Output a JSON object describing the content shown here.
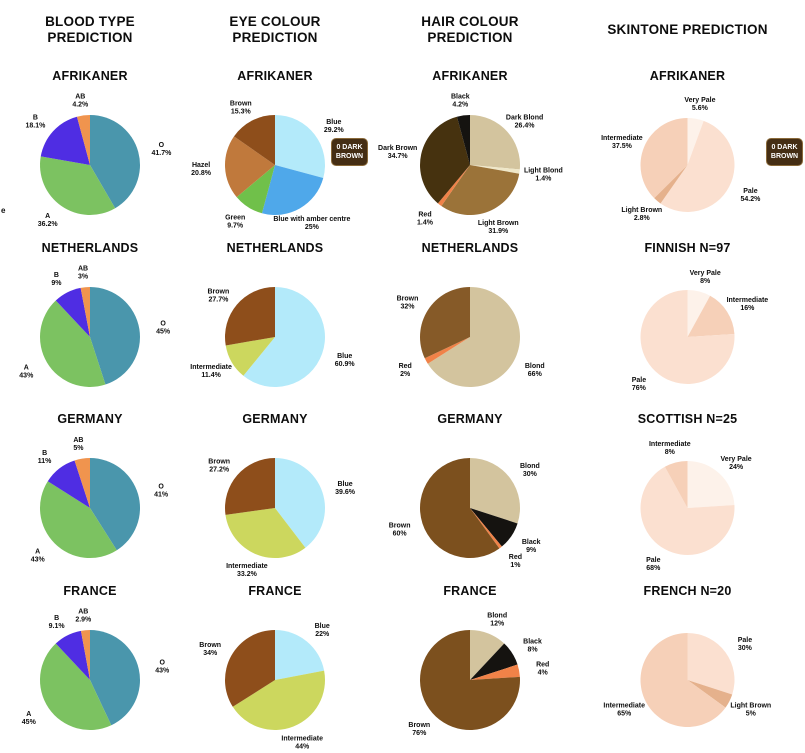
{
  "page": {
    "background": "#ffffff",
    "stray_text": "e"
  },
  "columns": [
    {
      "header": "BLOOD TYPE PREDICTION"
    },
    {
      "header": "EYE COLOUR PREDICTION"
    },
    {
      "header": "HAIR COLOUR PREDICTION"
    },
    {
      "header": "SKINTONE PREDICTION"
    }
  ],
  "badges": [
    {
      "label": "0 DARK BROWN"
    },
    {
      "label": "0 DARK BROWN"
    }
  ],
  "chart_data": [
    {
      "type": "pie",
      "group": "BLOOD TYPE PREDICTION",
      "title": "AFRIKANER",
      "labels": [
        "O",
        "A",
        "B",
        "AB"
      ],
      "values": [
        41.7,
        36.2,
        18.1,
        4.2
      ],
      "colors": [
        "#4a96ac",
        "#7cc261",
        "#4f2de3",
        "#f0944e"
      ],
      "start_angle": "12-oclock",
      "direction": "clockwise"
    },
    {
      "type": "pie",
      "group": "BLOOD TYPE PREDICTION",
      "title": "NETHERLANDS",
      "labels": [
        "O",
        "A",
        "B",
        "AB"
      ],
      "values": [
        45,
        43,
        9,
        3
      ],
      "colors": [
        "#4a96ac",
        "#7cc261",
        "#4f2de3",
        "#f0944e"
      ],
      "start_angle": "12-oclock",
      "direction": "clockwise"
    },
    {
      "type": "pie",
      "group": "BLOOD TYPE PREDICTION",
      "title": "GERMANY",
      "labels": [
        "O",
        "A",
        "B",
        "AB"
      ],
      "values": [
        41,
        43,
        11,
        5
      ],
      "colors": [
        "#4a96ac",
        "#7cc261",
        "#4f2de3",
        "#f0944e"
      ],
      "start_angle": "12-oclock",
      "direction": "clockwise"
    },
    {
      "type": "pie",
      "group": "BLOOD TYPE PREDICTION",
      "title": "FRANCE",
      "labels": [
        "O",
        "A",
        "B",
        "AB"
      ],
      "values": [
        43,
        45,
        9.1,
        2.9
      ],
      "colors": [
        "#4a96ac",
        "#7cc261",
        "#4f2de3",
        "#f0944e"
      ],
      "start_angle": "12-oclock",
      "direction": "clockwise"
    },
    {
      "type": "pie",
      "group": "EYE COLOUR PREDICTION",
      "title": "AFRIKANER",
      "labels": [
        "Blue",
        "Blue with amber centre",
        "Green",
        "Hazel",
        "Brown"
      ],
      "values": [
        29.2,
        25,
        9.7,
        20.8,
        15.3
      ],
      "colors": [
        "#b3eafa",
        "#4fa8ea",
        "#70c04a",
        "#c0793c",
        "#8e4e1b"
      ],
      "annotation": "0 DARK BROWN",
      "start_angle": "12-oclock",
      "direction": "clockwise"
    },
    {
      "type": "pie",
      "group": "EYE COLOUR PREDICTION",
      "title": "NETHERLANDS",
      "labels": [
        "Blue",
        "Intermediate",
        "Brown"
      ],
      "values": [
        60.9,
        11.4,
        27.7
      ],
      "colors": [
        "#b3eafa",
        "#ccd75e",
        "#8e4e1b"
      ],
      "start_angle": "12-oclock",
      "direction": "clockwise"
    },
    {
      "type": "pie",
      "group": "EYE COLOUR PREDICTION",
      "title": "GERMANY",
      "labels": [
        "Blue",
        "Intermediate",
        "Brown"
      ],
      "values": [
        39.6,
        33.2,
        27.2
      ],
      "colors": [
        "#b3eafa",
        "#ccd75e",
        "#8e4e1b"
      ],
      "start_angle": "12-oclock",
      "direction": "clockwise"
    },
    {
      "type": "pie",
      "group": "EYE COLOUR PREDICTION",
      "title": "FRANCE",
      "labels": [
        "Blue",
        "Intermediate",
        "Brown"
      ],
      "values": [
        22,
        44,
        34
      ],
      "colors": [
        "#b3eafa",
        "#ccd75e",
        "#8e4e1b"
      ],
      "start_angle": "12-oclock",
      "direction": "clockwise"
    },
    {
      "type": "pie",
      "group": "HAIR COLOUR PREDICTION",
      "title": "AFRIKANER",
      "labels": [
        "Dark Blond",
        "Light Blond",
        "Light Brown",
        "Red",
        "Dark Brown",
        "Black"
      ],
      "values": [
        26.4,
        1.4,
        31.9,
        1.4,
        34.7,
        4.2
      ],
      "colors": [
        "#d3c49e",
        "#efe7c8",
        "#9b7339",
        "#f08248",
        "#46320f",
        "#151310"
      ],
      "start_angle": "12-oclock",
      "direction": "clockwise"
    },
    {
      "type": "pie",
      "group": "HAIR COLOUR PREDICTION",
      "title": "NETHERLANDS",
      "labels": [
        "Blond",
        "Red",
        "Brown"
      ],
      "values": [
        66,
        2,
        32
      ],
      "colors": [
        "#d3c49e",
        "#f08248",
        "#865a28"
      ],
      "start_angle": "12-oclock",
      "direction": "clockwise"
    },
    {
      "type": "pie",
      "group": "HAIR COLOUR PREDICTION",
      "title": "GERMANY",
      "labels": [
        "Blond",
        "Black",
        "Red",
        "Brown"
      ],
      "values": [
        30,
        9,
        1,
        60
      ],
      "colors": [
        "#d3c49e",
        "#151310",
        "#f08248",
        "#7c501e"
      ],
      "start_angle": "12-oclock",
      "direction": "clockwise"
    },
    {
      "type": "pie",
      "group": "HAIR COLOUR PREDICTION",
      "title": "FRANCE",
      "labels": [
        "Blond",
        "Black",
        "Red",
        "Brown"
      ],
      "values": [
        12,
        8,
        4,
        76
      ],
      "colors": [
        "#d3c49e",
        "#151310",
        "#f08248",
        "#7c501e"
      ],
      "start_angle": "12-oclock",
      "direction": "clockwise"
    },
    {
      "type": "pie",
      "group": "SKINTONE PREDICTION",
      "title": "AFRIKANER",
      "labels": [
        "Very Pale",
        "Pale",
        "Light Brown",
        "Intermediate"
      ],
      "values": [
        5.6,
        54.2,
        2.8,
        37.5
      ],
      "colors": [
        "#fdf2ea",
        "#fbe0d0",
        "#e5b18c",
        "#f6d0b8"
      ],
      "annotation": "0 DARK BROWN",
      "start_angle": "12-oclock",
      "direction": "clockwise"
    },
    {
      "type": "pie",
      "group": "SKINTONE PREDICTION",
      "title": "FINNISH N=97",
      "labels": [
        "Very Pale",
        "Intermediate",
        "Pale"
      ],
      "values": [
        8,
        16,
        76
      ],
      "colors": [
        "#fdf2ea",
        "#f6d0b8",
        "#fbe0d0"
      ],
      "start_angle": "12-oclock",
      "direction": "clockwise"
    },
    {
      "type": "pie",
      "group": "SKINTONE PREDICTION",
      "title": "SCOTTISH N=25",
      "labels": [
        "Very Pale",
        "Pale",
        "Intermediate"
      ],
      "values": [
        24,
        68,
        8
      ],
      "colors": [
        "#fdf2ea",
        "#fbe0d0",
        "#f6d0b8"
      ],
      "start_angle": "12-oclock",
      "direction": "clockwise"
    },
    {
      "type": "pie",
      "group": "SKINTONE PREDICTION",
      "title": "FRENCH N=20",
      "labels": [
        "Pale",
        "Light Brown",
        "Intermediate"
      ],
      "values": [
        30,
        5,
        65
      ],
      "colors": [
        "#fbe0d0",
        "#e5b18c",
        "#f6d0b8"
      ],
      "start_angle": "12-oclock",
      "direction": "clockwise"
    }
  ]
}
